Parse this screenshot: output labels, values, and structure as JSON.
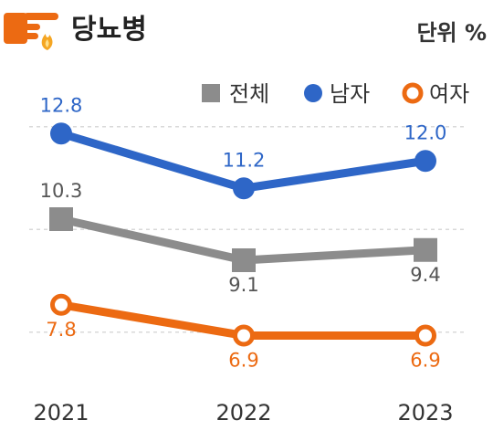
{
  "header": {
    "title": "당뇨병",
    "unit": "단위 %",
    "icon": "hand-pointing-flame-icon"
  },
  "colors": {
    "total": "#8c8c8c",
    "male": "#2e66c7",
    "female": "#ec6a12",
    "grid": "#d9d9d9"
  },
  "chart_data": {
    "type": "line",
    "title": "당뇨병",
    "unit": "단위 %",
    "categories": [
      "2021",
      "2022",
      "2023"
    ],
    "ylim": [
      5.5,
      13.5
    ],
    "grid": true,
    "legend_position": "top-right",
    "series": [
      {
        "name": "전체",
        "values": [
          10.3,
          9.1,
          9.4
        ],
        "labels": [
          "10.3",
          "9.1",
          "9.4"
        ],
        "marker": "square",
        "color": "#8c8c8c"
      },
      {
        "name": "남자",
        "values": [
          12.8,
          11.2,
          12.0
        ],
        "labels": [
          "12.8",
          "11.2",
          "12.0"
        ],
        "marker": "filled-circle",
        "color": "#2e66c7"
      },
      {
        "name": "여자",
        "values": [
          7.8,
          6.9,
          6.9
        ],
        "labels": [
          "7.8",
          "6.9",
          "6.9"
        ],
        "marker": "open-circle",
        "color": "#ec6a12"
      }
    ]
  }
}
